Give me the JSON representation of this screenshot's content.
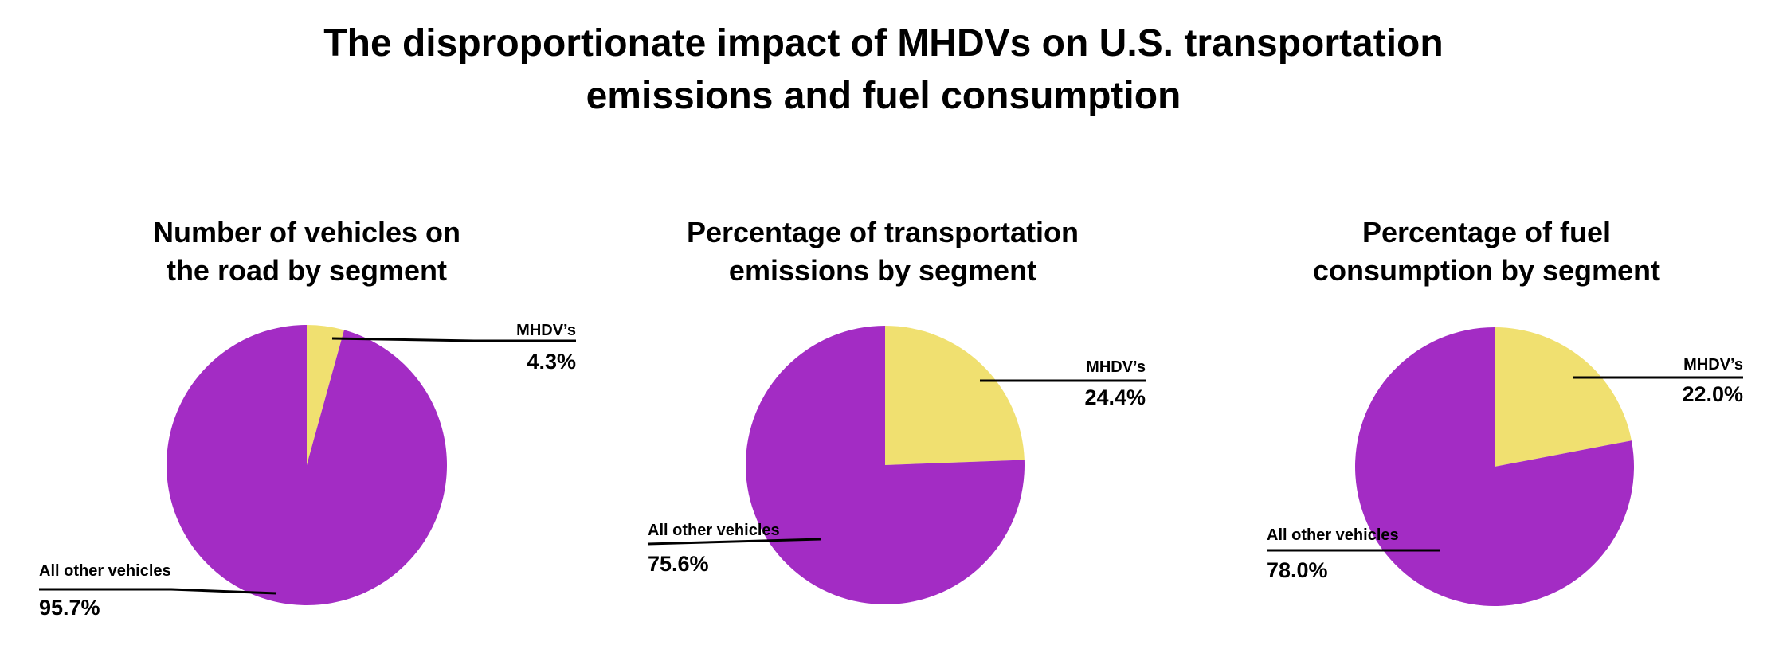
{
  "title_lines": [
    "The disproportionate impact of MHDVs on U.S. transportation",
    "emissions and fuel consumption"
  ],
  "colors": {
    "MHDV's": "#f0e070",
    "All other vehicles": "#a32cc4"
  },
  "chart_data": [
    {
      "type": "pie",
      "title_lines": [
        "Number of vehicles on",
        "the road by segment"
      ],
      "slices": [
        {
          "label": "MHDV’s",
          "value": 4.3,
          "value_label": "4.3%"
        },
        {
          "label": "All other vehicles",
          "value": 95.7,
          "value_label": "95.7%"
        }
      ]
    },
    {
      "type": "pie",
      "title_lines": [
        "Percentage of transportation",
        "emissions by segment"
      ],
      "slices": [
        {
          "label": "MHDV’s",
          "value": 24.4,
          "value_label": "24.4%"
        },
        {
          "label": "All other vehicles",
          "value": 75.6,
          "value_label": "75.6%"
        }
      ]
    },
    {
      "type": "pie",
      "title_lines": [
        "Percentage of fuel",
        "consumption by segment"
      ],
      "slices": [
        {
          "label": "MHDV’s",
          "value": 22.0,
          "value_label": "22.0%"
        },
        {
          "label": "All other vehicles",
          "value": 78.0,
          "value_label": "78.0%"
        }
      ]
    }
  ]
}
